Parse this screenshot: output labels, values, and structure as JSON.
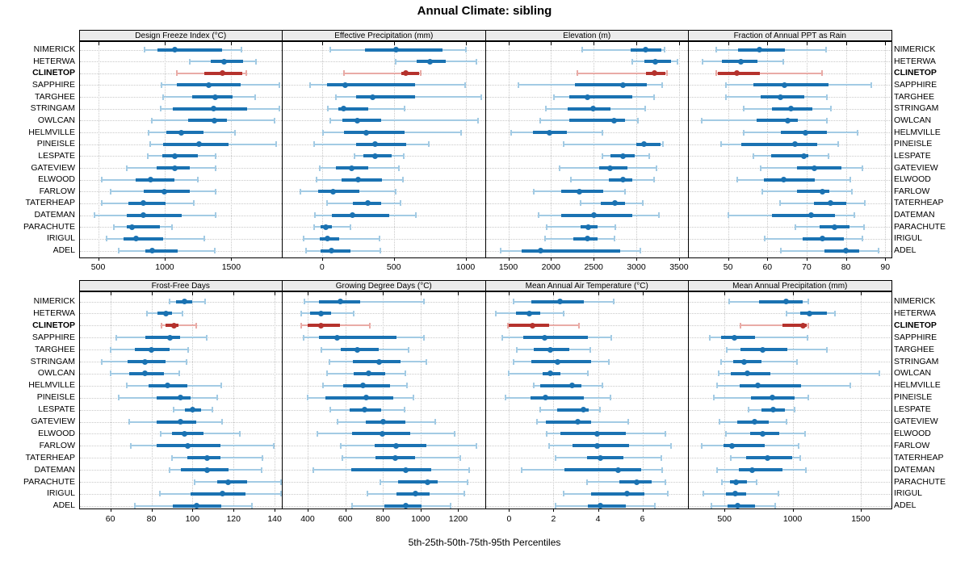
{
  "title": "Annual Climate: sibling",
  "xlabel": "5th-25th-50th-75th-95th Percentiles",
  "stations": [
    "NIMERICK",
    "HETERWA",
    "CLINETOP",
    "SAPPHIRE",
    "TARGHEE",
    "STRINGAM",
    "OWLCAN",
    "HELMVILLE",
    "PINEISLE",
    "LESPATE",
    "GATEVIEW",
    "ELWOOD",
    "FARLOW",
    "TATERHEAP",
    "DATEMAN",
    "PARACHUTE",
    "IRIGUL",
    "ADEL"
  ],
  "highlight_station": "CLINETOP",
  "colors": {
    "series_main": "#1a72b2",
    "series_light": "#a3cbe4",
    "highlight_main": "#b5322d",
    "highlight_light": "#e9aba6",
    "grid": "#c9c9c9",
    "strip_bg": "#ebebeb",
    "border": "#000000"
  },
  "chart_data": {
    "type": "dotplot-percentiles",
    "percentile_levels": [
      5,
      25,
      50,
      75,
      95
    ],
    "legend_note": "thin line = 5th-95th, thick line = 25th-75th, dot = median",
    "panels": [
      {
        "title": "Design Freeze Index (°C)",
        "grid_row": 0,
        "grid_col": 0,
        "xlim": [
          360,
          1880
        ],
        "ticks": [
          500,
          1000,
          1500
        ],
        "values": [
          [
            848,
            948,
            1079,
            1430,
            1579
          ],
          [
            1188,
            1344,
            1444,
            1588,
            1688
          ],
          [
            1090,
            1298,
            1431,
            1580,
            1610
          ],
          [
            973,
            1094,
            1333,
            1569,
            1860
          ],
          [
            990,
            1208,
            1379,
            1510,
            1677
          ],
          [
            969,
            1063,
            1365,
            1620,
            1860
          ],
          [
            902,
            1177,
            1375,
            1469,
            1823
          ],
          [
            881,
            1010,
            1125,
            1292,
            1527
          ],
          [
            890,
            990,
            1260,
            1479,
            1840
          ],
          [
            875,
            980,
            1073,
            1250,
            1380
          ],
          [
            715,
            940,
            1075,
            1190,
            1380
          ],
          [
            525,
            780,
            895,
            1075,
            1250
          ],
          [
            595,
            845,
            1000,
            1190,
            1380
          ],
          [
            527,
            730,
            840,
            1005,
            1220
          ],
          [
            473,
            715,
            840,
            1125,
            1385
          ],
          [
            620,
            715,
            755,
            965,
            1055
          ],
          [
            563,
            690,
            785,
            990,
            1300
          ],
          [
            656,
            855,
            905,
            1095,
            1375
          ]
        ]
      },
      {
        "title": "Effective Precipitation (mm)",
        "grid_row": 0,
        "grid_col": 1,
        "xlim": [
          -275,
          1135
        ],
        "ticks": [
          0,
          500,
          1000
        ],
        "values": [
          [
            55,
            300,
            515,
            840,
            1000
          ],
          [
            515,
            660,
            750,
            860,
            1075
          ],
          [
            150,
            555,
            585,
            675,
            690
          ],
          [
            -85,
            35,
            160,
            650,
            995
          ],
          [
            95,
            235,
            355,
            650,
            1110
          ],
          [
            40,
            115,
            150,
            320,
            575
          ],
          [
            55,
            140,
            245,
            410,
            1085
          ],
          [
            8,
            153,
            305,
            576,
            967
          ],
          [
            -57,
            237,
            372,
            586,
            744
          ],
          [
            227,
            290,
            372,
            487,
            572
          ],
          [
            -15,
            95,
            204,
            324,
            534
          ],
          [
            -38,
            134,
            252,
            420,
            563
          ],
          [
            -149,
            -25,
            76,
            258,
            515
          ],
          [
            32,
            215,
            320,
            410,
            548
          ],
          [
            -50,
            71,
            210,
            466,
            653
          ],
          [
            -57,
            -10,
            27,
            67,
            195
          ],
          [
            -126,
            -15,
            38,
            118,
            401
          ],
          [
            -111,
            -11,
            65,
            198,
            408
          ]
        ]
      },
      {
        "title": "Elevation (m)",
        "grid_row": 0,
        "grid_col": 2,
        "xlim": [
          1235,
          3605
        ],
        "ticks": [
          1500,
          2000,
          2500,
          3000,
          3500
        ],
        "values": [
          [
            2370,
            2930,
            3110,
            3290,
            3330
          ],
          [
            2950,
            3090,
            3220,
            3410,
            3485
          ],
          [
            2310,
            3110,
            3215,
            3340,
            3355
          ],
          [
            1620,
            2280,
            2845,
            3125,
            3300
          ],
          [
            2035,
            2215,
            2425,
            2950,
            3205
          ],
          [
            1940,
            2200,
            2490,
            2695,
            3100
          ],
          [
            1875,
            2210,
            2735,
            2870,
            3020
          ],
          [
            1530,
            1785,
            1980,
            2185,
            2600
          ],
          [
            2145,
            2995,
            3090,
            3280,
            3310
          ],
          [
            2600,
            2695,
            2845,
            2980,
            3155
          ],
          [
            2105,
            2565,
            2695,
            2900,
            3240
          ],
          [
            2230,
            2680,
            2840,
            2950,
            3205
          ],
          [
            1795,
            2120,
            2330,
            2615,
            2870
          ],
          [
            2345,
            2585,
            2750,
            2870,
            3075
          ],
          [
            1850,
            2120,
            2505,
            2950,
            3265
          ],
          [
            1950,
            2345,
            2440,
            2550,
            2750
          ],
          [
            1930,
            2265,
            2425,
            2550,
            2740
          ],
          [
            1410,
            1660,
            1880,
            2810,
            3050
          ]
        ]
      },
      {
        "title": "Fraction of Annual PPT as Rain",
        "grid_row": 0,
        "grid_col": 3,
        "xlim": [
          40,
          91.5
        ],
        "ticks": [
          50,
          60,
          70,
          80,
          90
        ],
        "values": [
          [
            47,
            52.5,
            58,
            64.5,
            75
          ],
          [
            43.5,
            48.5,
            53.3,
            57.5,
            64
          ],
          [
            47,
            47.5,
            52.3,
            58,
            74
          ],
          [
            49.5,
            56.5,
            64.3,
            75.5,
            86.5
          ],
          [
            49.5,
            58.3,
            63.3,
            69.3,
            75.2
          ],
          [
            54,
            61.2,
            66,
            71.4,
            76.2
          ],
          [
            43.3,
            57.3,
            65.2,
            67.8,
            75.2
          ],
          [
            54,
            63.5,
            69.7,
            75.2,
            83
          ],
          [
            48.3,
            53.3,
            67.1,
            72.6,
            78
          ],
          [
            56.5,
            61,
            69.2,
            70.5,
            75.5
          ],
          [
            58.3,
            67.5,
            72,
            78.8,
            84.3
          ],
          [
            52.3,
            59.2,
            64.2,
            72,
            81.2
          ],
          [
            58.7,
            67.5,
            74.1,
            75.7,
            81.6
          ],
          [
            63.3,
            71.8,
            76,
            80,
            84.9
          ],
          [
            50,
            61.2,
            71.1,
            77.3,
            82.1
          ],
          [
            67.1,
            73.4,
            77.1,
            80.9,
            84.7
          ],
          [
            59.4,
            69,
            74.1,
            79.4,
            84.2
          ],
          [
            63.5,
            74.5,
            80,
            83.3,
            88.3
          ]
        ]
      },
      {
        "title": "Frost-Free Days",
        "grid_row": 1,
        "grid_col": 0,
        "xlim": [
          45,
          143.5
        ],
        "ticks": [
          60,
          80,
          100,
          120,
          140
        ],
        "values": [
          [
            89,
            92,
            96,
            100,
            106
          ],
          [
            78,
            83,
            87,
            90,
            95
          ],
          [
            85,
            87,
            91,
            93,
            102
          ],
          [
            63,
            77,
            89,
            94,
            107
          ],
          [
            60,
            72,
            80,
            89,
            98
          ],
          [
            56,
            68.5,
            77,
            87,
            97
          ],
          [
            60,
            69,
            77,
            86,
            93.5
          ],
          [
            68,
            78.5,
            88,
            97.5,
            114
          ],
          [
            64,
            82.5,
            94,
            99,
            112
          ],
          [
            91,
            96.5,
            100,
            104,
            109.5
          ],
          [
            69,
            82.5,
            94,
            102,
            114.5
          ],
          [
            84.5,
            90,
            96,
            105.5,
            123
          ],
          [
            70,
            82.5,
            97.5,
            113.5,
            139.5
          ],
          [
            90,
            97.5,
            107,
            113.5,
            134
          ],
          [
            89,
            94.5,
            107,
            117.5,
            133.5
          ],
          [
            101,
            112,
            117.5,
            126.5,
            143
          ],
          [
            84,
            99,
            114.5,
            126,
            143
          ],
          [
            72,
            90.5,
            102,
            114,
            129
          ]
        ]
      },
      {
        "title": "Growing Degree Days (°C)",
        "grid_row": 1,
        "grid_col": 1,
        "xlim": [
          267,
          1342
        ],
        "ticks": [
          400,
          600,
          800,
          1000,
          1200
        ],
        "values": [
          [
            385,
            458,
            573,
            680,
            1020
          ],
          [
            365,
            415,
            470,
            525,
            645
          ],
          [
            365,
            400,
            470,
            573,
            732
          ],
          [
            380,
            458,
            555,
            870,
            1018
          ],
          [
            472,
            578,
            664,
            776,
            937
          ],
          [
            515,
            640,
            780,
            895,
            1033
          ],
          [
            505,
            645,
            725,
            810,
            920
          ],
          [
            480,
            590,
            693,
            836,
            930
          ],
          [
            400,
            494,
            711,
            855,
            963
          ],
          [
            520,
            624,
            703,
            790,
            913
          ],
          [
            559,
            708,
            800,
            920,
            1079
          ],
          [
            450,
            638,
            797,
            945,
            1180
          ],
          [
            578,
            758,
            870,
            1033,
            1299
          ],
          [
            583,
            760,
            867,
            970,
            1209
          ],
          [
            429,
            631,
            920,
            1057,
            1259
          ],
          [
            786,
            881,
            1036,
            1089,
            1248
          ],
          [
            718,
            874,
            973,
            1050,
            1234
          ],
          [
            638,
            809,
            920,
            1007,
            1161
          ]
        ]
      },
      {
        "title": "Mean Annual Air Temperature (°C)",
        "grid_row": 1,
        "grid_col": 2,
        "xlim": [
          -1.05,
          8.05
        ],
        "ticks": [
          0,
          2,
          4,
          6
        ],
        "values": [
          [
            0.2,
            1.0,
            2.3,
            3.35,
            4.7
          ],
          [
            -0.6,
            0.3,
            0.9,
            1.4,
            2.45
          ],
          [
            -0.05,
            0.0,
            1.05,
            1.8,
            3.15
          ],
          [
            -0.3,
            0.65,
            1.6,
            3.55,
            4.6
          ],
          [
            0.35,
            1.1,
            1.85,
            2.7,
            3.65
          ],
          [
            0.2,
            1.0,
            2.2,
            3.7,
            4.5
          ],
          [
            0.0,
            1.5,
            1.85,
            2.3,
            3.55
          ],
          [
            1.1,
            1.4,
            2.85,
            3.25,
            4.2
          ],
          [
            -0.15,
            0.95,
            1.65,
            3.35,
            4.55
          ],
          [
            1.4,
            2.15,
            3.35,
            3.6,
            4.1
          ],
          [
            1.25,
            1.65,
            3.1,
            3.7,
            5.35
          ],
          [
            1.7,
            2.3,
            3.95,
            5.25,
            7.05
          ],
          [
            1.8,
            2.85,
            3.95,
            5.4,
            7.3
          ],
          [
            2.1,
            3.5,
            4.1,
            5.15,
            6.85
          ],
          [
            0.55,
            2.5,
            4.9,
            5.95,
            6.9
          ],
          [
            3.5,
            4.95,
            5.75,
            6.4,
            7.05
          ],
          [
            2.45,
            3.7,
            5.3,
            6.1,
            7.15
          ],
          [
            2.1,
            3.55,
            4.1,
            5.25,
            6.55
          ]
        ]
      },
      {
        "title": "Mean Annual Precipitation (mm)",
        "grid_row": 1,
        "grid_col": 3,
        "xlim": [
          238,
          1723
        ],
        "ticks": [
          500,
          1000,
          1500
        ],
        "values": [
          [
            535,
            755,
            950,
            1075,
            1115
          ],
          [
            958,
            1054,
            1124,
            1254,
            1310
          ],
          [
            615,
            925,
            1078,
            1104,
            1118
          ],
          [
            390,
            474,
            570,
            724,
            1108
          ],
          [
            518,
            618,
            778,
            964,
            1250
          ],
          [
            478,
            564,
            644,
            774,
            1030
          ],
          [
            458,
            544,
            670,
            834,
            1638
          ],
          [
            444,
            610,
            744,
            1064,
            1424
          ],
          [
            424,
            694,
            854,
            1014,
            1114
          ],
          [
            674,
            774,
            858,
            944,
            1014
          ],
          [
            464,
            594,
            724,
            824,
            954
          ],
          [
            510,
            690,
            780,
            904,
            1094
          ],
          [
            334,
            494,
            558,
            794,
            1044
          ],
          [
            544,
            658,
            814,
            994,
            1058
          ],
          [
            444,
            604,
            704,
            924,
            1098
          ],
          [
            484,
            540,
            584,
            664,
            734
          ],
          [
            344,
            510,
            578,
            658,
            894
          ],
          [
            404,
            524,
            594,
            724,
            874
          ]
        ]
      }
    ]
  }
}
